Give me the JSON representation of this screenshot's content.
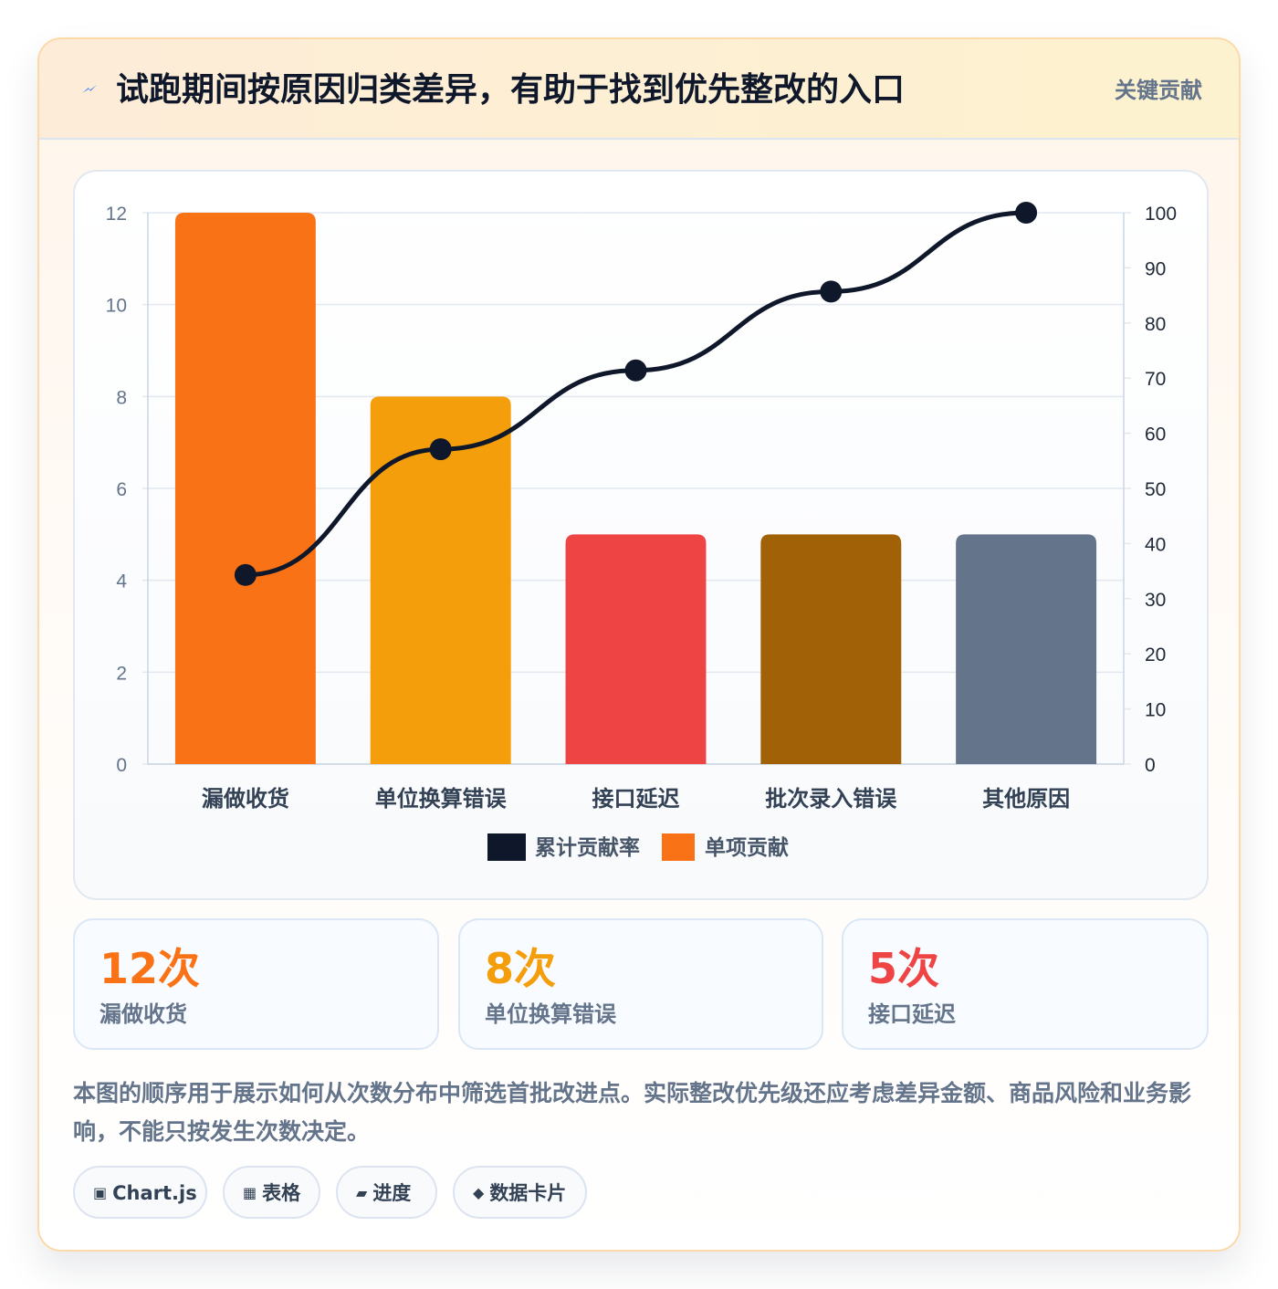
{
  "header": {
    "icon": "lightning-icon",
    "title": "试跑期间按原因归类差异，有助于找到优先整改的入口",
    "tag": "关键贡献"
  },
  "colors": {
    "accent_orange": "#f97316",
    "amber": "#f59e0b",
    "red": "#ef4444",
    "brown": "#a16207",
    "slate": "#64748b",
    "line": "#0f172a"
  },
  "chart_data": {
    "type": "bar",
    "categories": [
      "漏做收货",
      "单位换算错误",
      "接口延迟",
      "批次录入错误",
      "其他原因"
    ],
    "series": [
      {
        "name": "单项贡献",
        "type": "bar",
        "axis": "left",
        "values": [
          12,
          8,
          5,
          5,
          5
        ],
        "colors": [
          "#f97316",
          "#f59e0b",
          "#ef4444",
          "#a16207",
          "#64748b"
        ]
      },
      {
        "name": "累计贡献率",
        "type": "line",
        "axis": "right",
        "values": [
          34.3,
          57.1,
          71.4,
          85.7,
          100
        ],
        "color": "#0f172a"
      }
    ],
    "ylim": [
      0,
      12
    ],
    "yticks": [
      "0",
      "2",
      "4",
      "6",
      "8",
      "10",
      "12"
    ],
    "y2lim": [
      0,
      100
    ],
    "y2ticks": [
      "0",
      "10",
      "20",
      "30",
      "40",
      "50",
      "60",
      "70",
      "80",
      "90",
      "100"
    ],
    "grid": true,
    "legend": {
      "position": "bottom",
      "items": [
        "累计贡献率",
        "单项贡献"
      ]
    }
  },
  "stats": [
    {
      "value": "12次",
      "label": "漏做收货",
      "color": "#f97316"
    },
    {
      "value": "8次",
      "label": "单位换算错误",
      "color": "#f59e0b"
    },
    {
      "value": "5次",
      "label": "接口延迟",
      "color": "#ef4444"
    }
  ],
  "note": "本图的顺序用于展示如何从次数分布中筛选首批改进点。实际整改优先级还应考虑差异金额、商品风险和业务影响，不能只按发生次数决定。",
  "chips": [
    {
      "icon": "▣",
      "icon_name": "chart-icon",
      "label": "Chart.js"
    },
    {
      "icon": "▦",
      "icon_name": "table-icon",
      "label": "表格"
    },
    {
      "icon": "▰",
      "icon_name": "progress-icon",
      "label": "进度"
    },
    {
      "icon": "◆",
      "icon_name": "diamond-icon",
      "label": "数据卡片"
    }
  ]
}
